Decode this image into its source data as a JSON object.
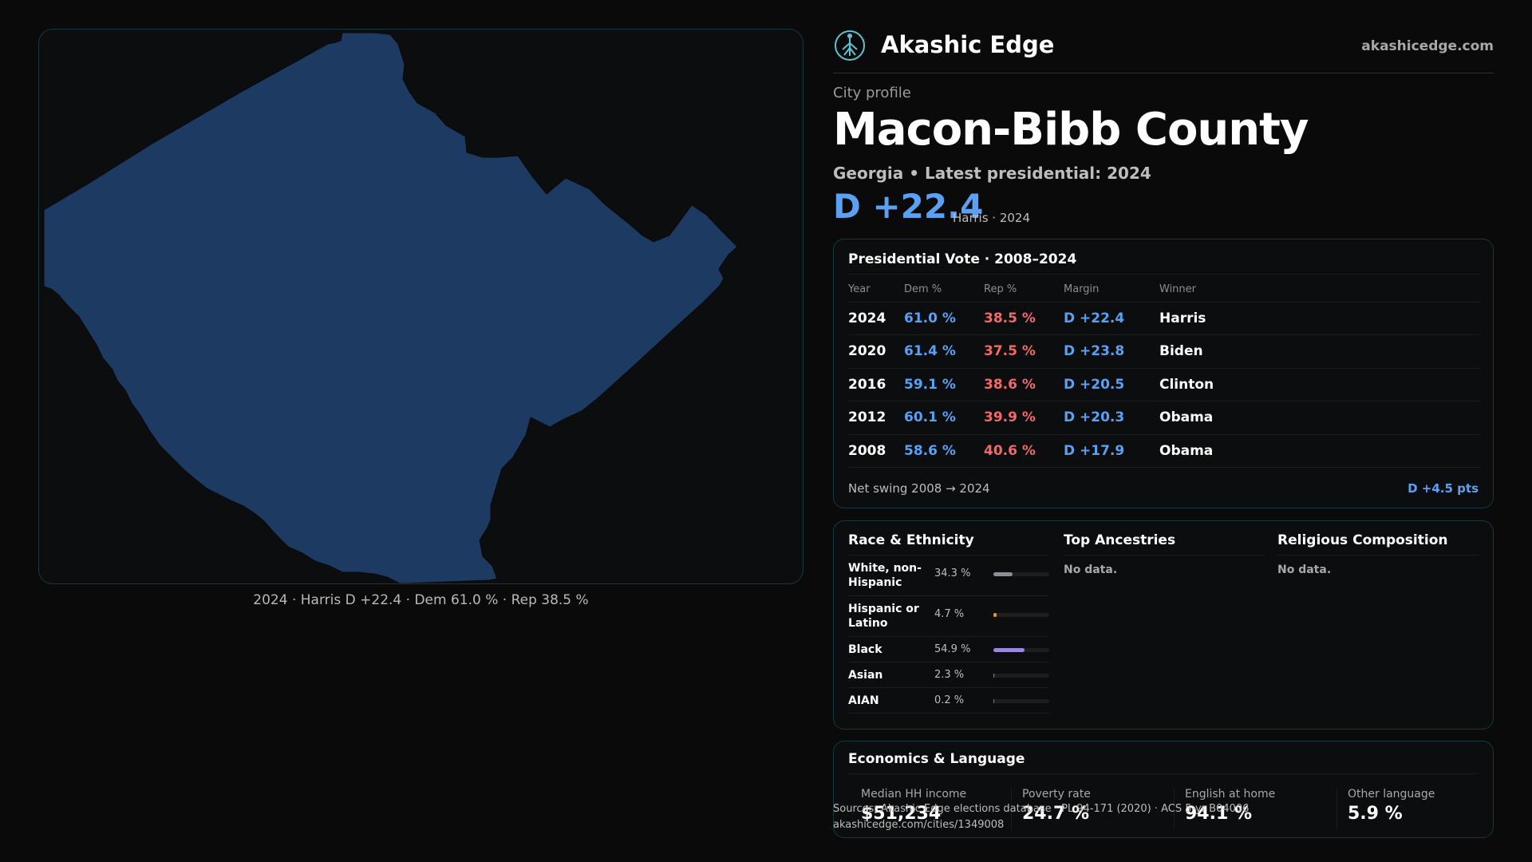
{
  "map": {
    "region_name": "Macon-Bibb County",
    "fill_color": "#1d3a62",
    "caption": "2024 · Harris D +22.4 · Dem 61.0 % · Rep 38.5 %"
  },
  "header": {
    "brand": "Akashic Edge",
    "site": "akashicedge.com",
    "logo_icon": "tree-circle-logo-icon"
  },
  "profile": {
    "eyebrow": "City profile",
    "title": "Macon-Bibb County",
    "subtitle": "Georgia • Latest presidential: 2024",
    "margin": "D +22.4",
    "margin_note": "Harris · 2024"
  },
  "presidential": {
    "title": "Presidential Vote · 2008–2024",
    "columns": [
      "Year",
      "Dem %",
      "Rep %",
      "Margin",
      "Winner"
    ],
    "rows": [
      {
        "year": "2024",
        "dem": "61.0 %",
        "rep": "38.5 %",
        "margin": "D +22.4",
        "winner": "Harris"
      },
      {
        "year": "2020",
        "dem": "61.4 %",
        "rep": "37.5 %",
        "margin": "D +23.8",
        "winner": "Biden"
      },
      {
        "year": "2016",
        "dem": "59.1 %",
        "rep": "38.6 %",
        "margin": "D +20.5",
        "winner": "Clinton"
      },
      {
        "year": "2012",
        "dem": "60.1 %",
        "rep": "39.9 %",
        "margin": "D +20.3",
        "winner": "Obama"
      },
      {
        "year": "2008",
        "dem": "58.6 %",
        "rep": "40.6 %",
        "margin": "D +17.9",
        "winner": "Obama"
      }
    ],
    "swing_label": "Net swing 2008 → 2024",
    "swing_value": "D +4.5 pts"
  },
  "demographics": {
    "race_title": "Race & Ethnicity",
    "race_rows": [
      {
        "label": "White, non-Hispanic",
        "pct": "34.3 %",
        "value": 34.3,
        "color": "#8a8f98"
      },
      {
        "label": "Hispanic or Latino",
        "pct": "4.7 %",
        "value": 4.7,
        "color": "#e59a2f"
      },
      {
        "label": "Black",
        "pct": "54.9 %",
        "value": 54.9,
        "color": "#9b87e0"
      },
      {
        "label": "Asian",
        "pct": "2.3 %",
        "value": 2.3,
        "color": "#3bb39a"
      },
      {
        "label": "AIAN",
        "pct": "0.2 %",
        "value": 0.2,
        "color": "#c0692f"
      }
    ],
    "ancestry_title": "Top Ancestries",
    "ancestry_text": "No data.",
    "religion_title": "Religious Composition",
    "religion_text": "No data."
  },
  "economics": {
    "title": "Economics & Language",
    "stats": [
      {
        "label": "Median HH income",
        "value": "$51,234"
      },
      {
        "label": "Poverty rate",
        "value": "24.7 %"
      },
      {
        "label": "English at home",
        "value": "94.1 %"
      },
      {
        "label": "Other language",
        "value": "5.9 %"
      }
    ]
  },
  "footer": {
    "source": "Sources: Akashic Edge elections database · PL 94-171 (2020) · ACS 5-yr B04006",
    "url": "akashicedge.com/cities/1349008"
  }
}
